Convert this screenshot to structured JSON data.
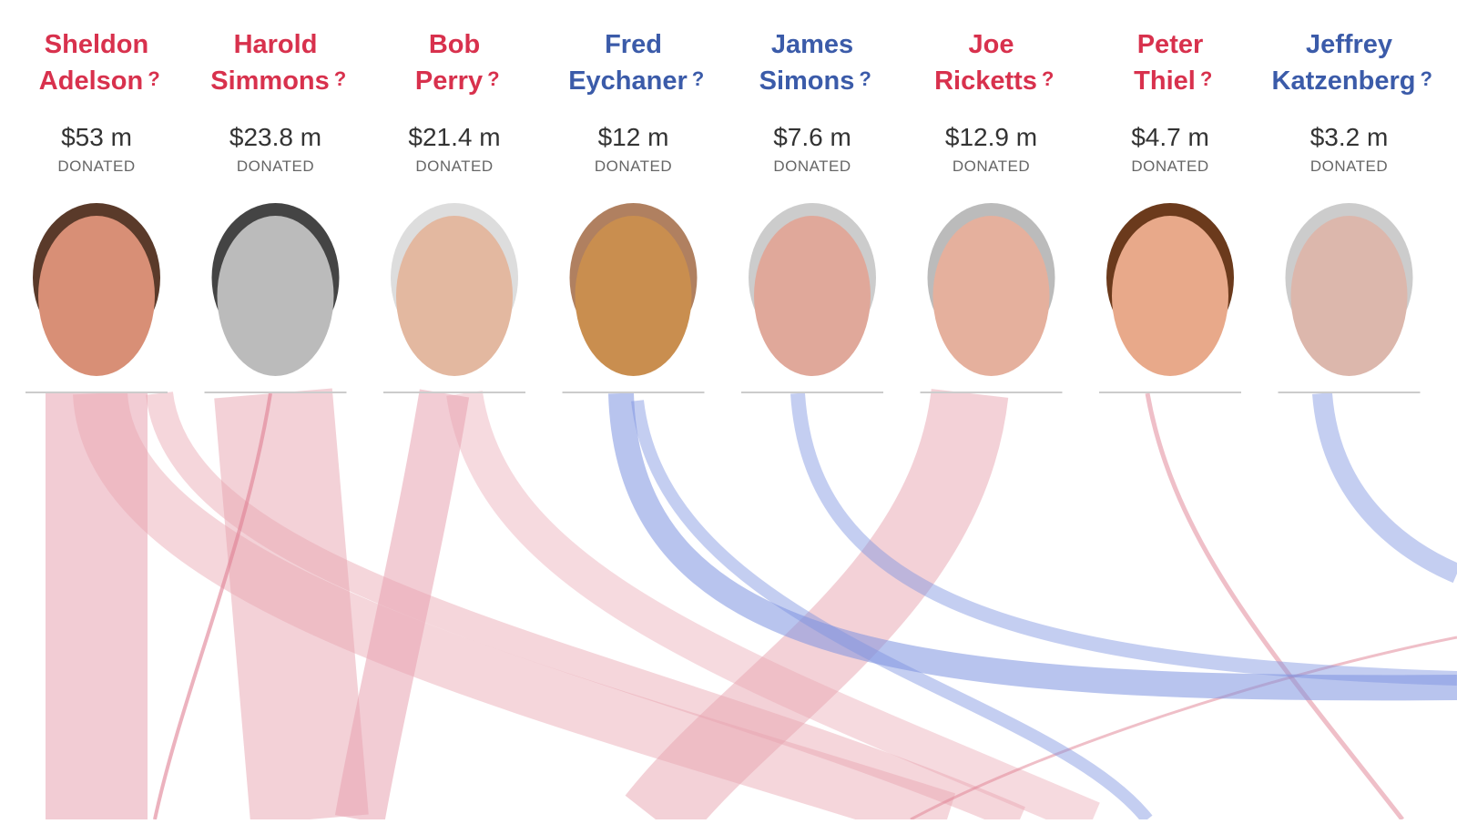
{
  "donors": [
    {
      "name": [
        "Sheldon",
        "Adelson"
      ],
      "amount": "$53 m",
      "color": "#d8314d"
    },
    {
      "name": [
        "Harold",
        "Simmons"
      ],
      "amount": "$23.8 m",
      "color": "#d8314d"
    },
    {
      "name": [
        "Bob",
        "Perry"
      ],
      "amount": "$21.4 m",
      "color": "#d8314d"
    },
    {
      "name": [
        "Fred",
        "Eychaner"
      ],
      "amount": "$12 m",
      "color": "#3b5ba9"
    },
    {
      "name": [
        "James",
        "Simons"
      ],
      "amount": "$7.6 m",
      "color": "#3b5ba9"
    },
    {
      "name": [
        "Joe",
        "Ricketts"
      ],
      "amount": "$12.9 m",
      "color": "#d8314d"
    },
    {
      "name": [
        "Peter",
        "Thiel"
      ],
      "amount": "$4.7 m",
      "color": "#d8314d"
    },
    {
      "name": [
        "Jeffrey",
        "Katzenberg"
      ],
      "amount": "$3.2 m",
      "color": "#3b5ba9"
    }
  ],
  "donated_label": "DONATED",
  "help_mark": "?"
}
